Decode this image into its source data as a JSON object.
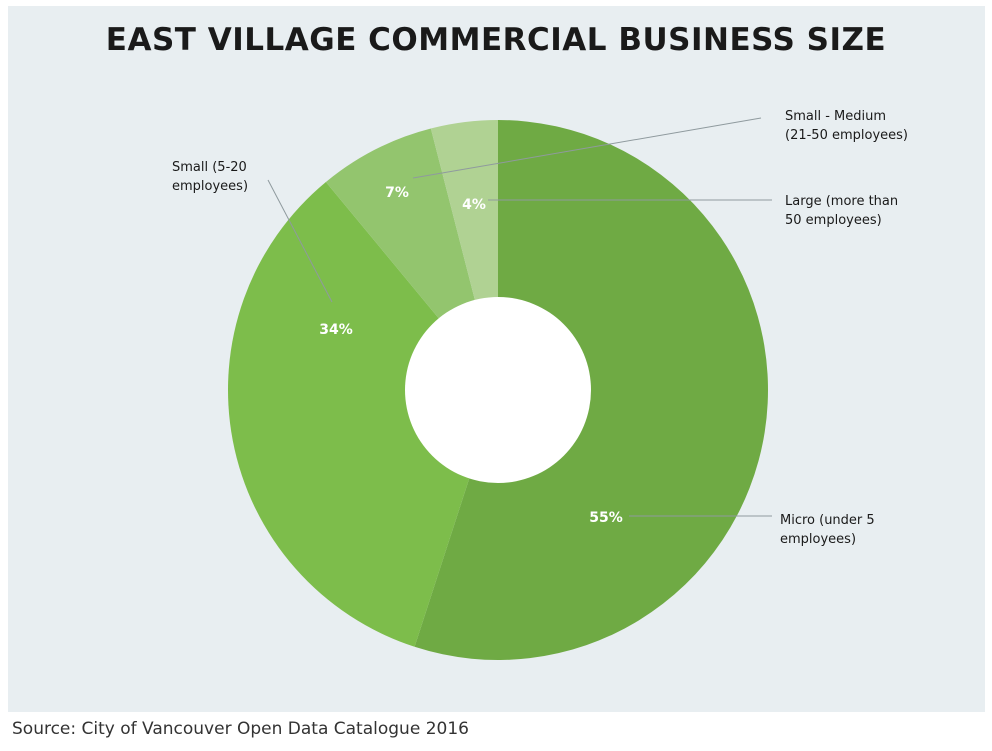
{
  "chart_data": {
    "type": "pie",
    "title": "EAST VILLAGE COMMERCIAL BUSINESS SIZE",
    "donut": true,
    "slices": [
      {
        "label": "Micro (under 5 employees)",
        "value": 55,
        "display": "55%",
        "color": "#6faa44"
      },
      {
        "label": "Small (5-20 employees)",
        "value": 34,
        "display": "34%",
        "color": "#7dbd4b"
      },
      {
        "label": "Small - Medium (21-50 employees)",
        "value": 7,
        "display": "7%",
        "color": "#93c56e"
      },
      {
        "label": "Large (more than 50 employees)",
        "value": 4,
        "display": "4%",
        "color": "#b0d293"
      }
    ],
    "source": "Source: City of Vancouver Open Data Catalogue 2016"
  },
  "colors": {
    "panel_background": "#e8eef1",
    "donut_hole": "#ffffff"
  }
}
